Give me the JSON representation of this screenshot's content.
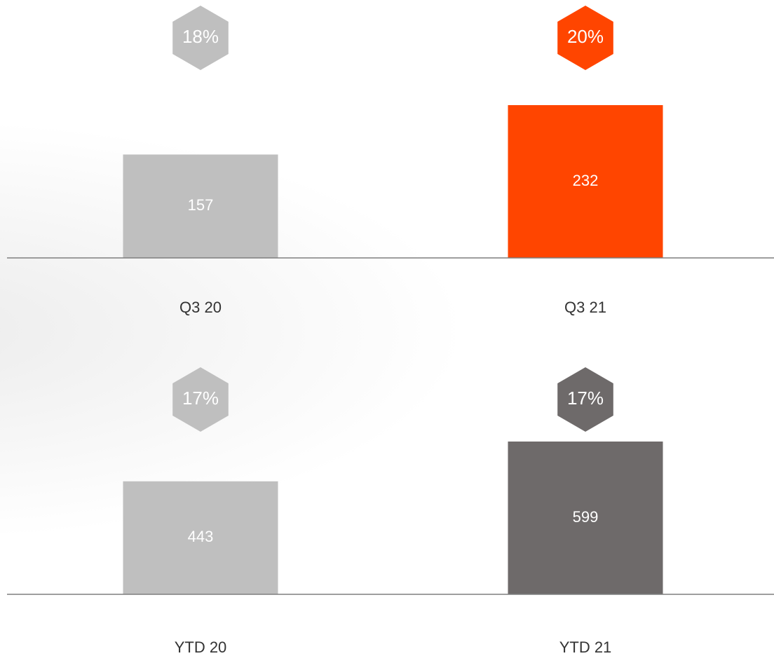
{
  "chart_data": [
    {
      "type": "bar",
      "categories": [
        "Q3 20",
        "Q3 21"
      ],
      "values": [
        157,
        232
      ],
      "colors": [
        "#bfbfbf",
        "#ff4500"
      ],
      "percentages": [
        18,
        20
      ],
      "percentage_labels": [
        "18%",
        "20%"
      ]
    },
    {
      "type": "bar",
      "categories": [
        "YTD 20",
        "YTD 21"
      ],
      "values": [
        443,
        599
      ],
      "colors": [
        "#bfbfbf",
        "#6e6a6a"
      ],
      "percentages": [
        17,
        17
      ],
      "percentage_labels": [
        "17%",
        "17%"
      ]
    }
  ]
}
